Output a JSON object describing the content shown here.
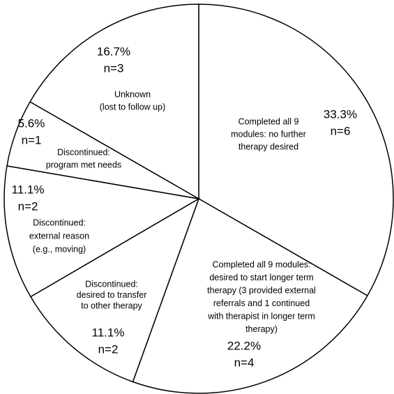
{
  "chart_data": {
    "type": "pie",
    "categories": [
      [
        "Completed all 9",
        "modules: no further",
        "therapy desired"
      ],
      [
        "Completed all 9 modules:",
        "desired to start longer term",
        "therapy (3 provided external",
        "referrals and 1 continued",
        "with therapist in longer term",
        "therapy)"
      ],
      [
        "Discontinued:",
        "desired to transfer",
        "to other therapy"
      ],
      [
        "Discontinued:",
        "external reason",
        "(e.g., moving)"
      ],
      [
        "Discontinued:",
        "program met needs"
      ],
      [
        "Unknown",
        "(lost to follow up)"
      ]
    ],
    "values": [
      33.3,
      22.2,
      11.1,
      11.1,
      5.6,
      16.7
    ],
    "value_labels": [
      "33.3%",
      "22.2%",
      "11.1%",
      "11.1%",
      "5.6%",
      "16.7%"
    ],
    "count_labels": [
      "n=6",
      "n=4",
      "n=2",
      "n=2",
      "n=1",
      "n=3"
    ],
    "color": "#ffffff",
    "edge_color": "#000000"
  }
}
